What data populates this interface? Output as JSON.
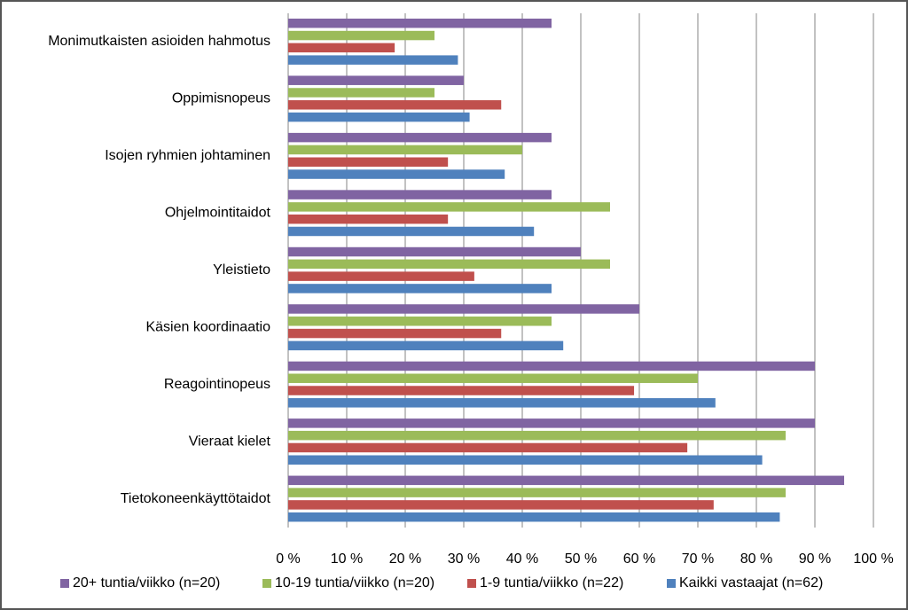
{
  "chart_data": {
    "type": "hbar",
    "categories": [
      "Monimutkaisten asioiden hahmotus",
      "Oppimisnopeus",
      "Isojen ryhmien johtaminen",
      "Ohjelmointitaidot",
      "Yleistieto",
      "Käsien koordinaatio",
      "Reagointinopeus",
      "Vieraat kielet",
      "Tietokoneenkäyttötaidot"
    ],
    "series": [
      {
        "name": "20+ tuntia/viikko (n=20)",
        "color": "#8064a2",
        "values": [
          45,
          30,
          45,
          45,
          50,
          60,
          90,
          90,
          95
        ]
      },
      {
        "name": "10-19 tuntia/viikko (n=20)",
        "color": "#9bbb59",
        "values": [
          25,
          25,
          40,
          55,
          55,
          45,
          70,
          85,
          85
        ]
      },
      {
        "name": "1-9 tuntia/viikko (n=22)",
        "color": "#c0504d",
        "values": [
          18.2,
          36.4,
          27.3,
          27.3,
          31.8,
          36.4,
          59.1,
          68.2,
          72.7
        ]
      },
      {
        "name": "Kaikki vastaajat (n=62)",
        "color": "#4f81bd",
        "values": [
          29,
          31,
          37,
          42,
          45,
          47,
          73,
          81,
          84
        ]
      }
    ],
    "xlim": [
      0,
      100
    ],
    "xticks": [
      {
        "value": 0,
        "label": "0 %"
      },
      {
        "value": 10,
        "label": "10 %"
      },
      {
        "value": 20,
        "label": "20 %"
      },
      {
        "value": 30,
        "label": "30 %"
      },
      {
        "value": 40,
        "label": "40 %"
      },
      {
        "value": 50,
        "label": "50 %"
      },
      {
        "value": 60,
        "label": "60 %"
      },
      {
        "value": 70,
        "label": "70 %"
      },
      {
        "value": 80,
        "label": "80 %"
      },
      {
        "value": 90,
        "label": "90 %"
      },
      {
        "value": 100,
        "label": "100 %"
      }
    ],
    "grid": true,
    "legend": "bottom"
  }
}
